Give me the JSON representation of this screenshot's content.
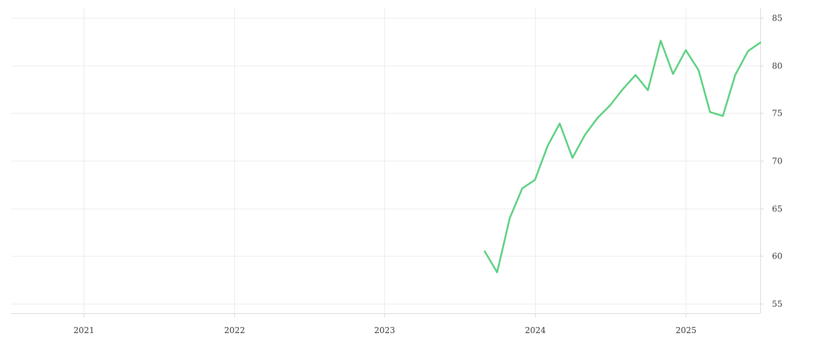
{
  "chart_data": {
    "type": "line",
    "title": "",
    "xlabel": "",
    "ylabel": "",
    "grid": true,
    "x_axis": {
      "range": [
        "2020-07-08",
        "2025-07-01"
      ],
      "ticks": [
        {
          "date": "2021-01-01",
          "label": "2021"
        },
        {
          "date": "2022-01-01",
          "label": "2022"
        },
        {
          "date": "2023-01-01",
          "label": "2023"
        },
        {
          "date": "2024-01-01",
          "label": "2024"
        },
        {
          "date": "2025-01-01",
          "label": "2025"
        }
      ]
    },
    "y_axis": {
      "position": "right",
      "range": [
        54,
        86
      ],
      "ticks": [
        55,
        60,
        65,
        70,
        75,
        80,
        85
      ]
    },
    "series": [
      {
        "color": "#5ad07f",
        "points": [
          {
            "x": "2023-09-01",
            "y": 60.5
          },
          {
            "x": "2023-10-01",
            "y": 58.3
          },
          {
            "x": "2023-11-01",
            "y": 64.0
          },
          {
            "x": "2023-12-01",
            "y": 67.1
          },
          {
            "x": "2024-01-01",
            "y": 68.0
          },
          {
            "x": "2024-02-01",
            "y": 71.6
          },
          {
            "x": "2024-03-01",
            "y": 73.9
          },
          {
            "x": "2024-04-01",
            "y": 70.3
          },
          {
            "x": "2024-05-01",
            "y": 72.7
          },
          {
            "x": "2024-06-01",
            "y": 74.5
          },
          {
            "x": "2024-07-01",
            "y": 75.8
          },
          {
            "x": "2024-08-01",
            "y": 77.5
          },
          {
            "x": "2024-09-01",
            "y": 79.0
          },
          {
            "x": "2024-10-01",
            "y": 77.4
          },
          {
            "x": "2024-11-01",
            "y": 82.6
          },
          {
            "x": "2024-12-01",
            "y": 79.1
          },
          {
            "x": "2025-01-01",
            "y": 81.6
          },
          {
            "x": "2025-02-01",
            "y": 79.5
          },
          {
            "x": "2025-03-01",
            "y": 75.1
          },
          {
            "x": "2025-04-01",
            "y": 74.7
          },
          {
            "x": "2025-05-01",
            "y": 79.0
          },
          {
            "x": "2025-06-01",
            "y": 81.5
          },
          {
            "x": "2025-07-01",
            "y": 82.4
          }
        ]
      }
    ]
  }
}
